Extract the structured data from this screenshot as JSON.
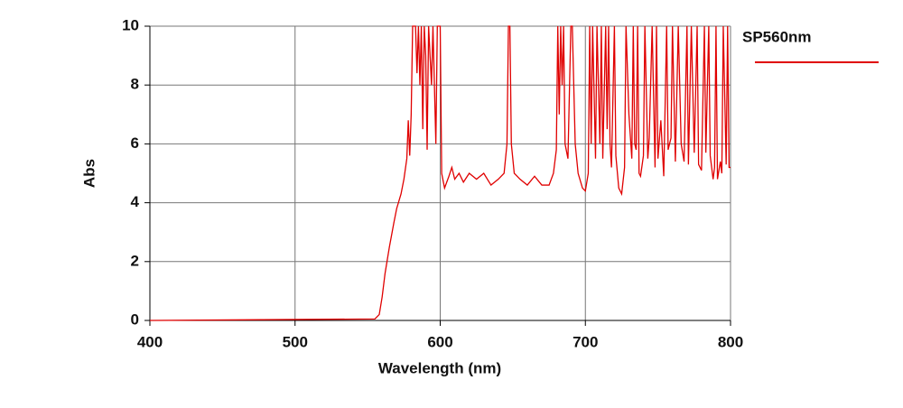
{
  "chart_data": {
    "type": "line",
    "x_label": "Wavelength (nm)",
    "y_label": "Abs",
    "xlim": [
      400,
      800
    ],
    "xticks": [
      400,
      500,
      600,
      700,
      800
    ],
    "ylim": [
      0,
      10
    ],
    "yticks": [
      0,
      2,
      4,
      6,
      8,
      10
    ],
    "grid": true,
    "legend": "top-right",
    "series": [
      {
        "name": "SP560nm",
        "color": "#e00000",
        "x": [
          400,
          555,
          558,
          560,
          562,
          565,
          568,
          570,
          573,
          575,
          577,
          578,
          579,
          580,
          581,
          583,
          584,
          585,
          586,
          587,
          588,
          589,
          590,
          591,
          592,
          594,
          595,
          597,
          598,
          600,
          601,
          603,
          606,
          608,
          610,
          613,
          616,
          620,
          625,
          630,
          635,
          640,
          644,
          646,
          647,
          648,
          649,
          651,
          655,
          660,
          665,
          670,
          675,
          678,
          680,
          681,
          682,
          683,
          684,
          685,
          686,
          688,
          690,
          691,
          693,
          695,
          698,
          700,
          702,
          703,
          704,
          705,
          707,
          708,
          710,
          711,
          712,
          714,
          715,
          716,
          717,
          718,
          720,
          721,
          723,
          725,
          727,
          728,
          730,
          732,
          733,
          734,
          735,
          736,
          737,
          738,
          740,
          741,
          743,
          744,
          746,
          748,
          749,
          750,
          752,
          754,
          756,
          757,
          759,
          760,
          762,
          764,
          766,
          768,
          770,
          771,
          773,
          775,
          777,
          778,
          780,
          782,
          783,
          785,
          786,
          788,
          789,
          790,
          791,
          793,
          794,
          795,
          797,
          798,
          799,
          800
        ],
        "values": [
          0,
          0.05,
          0.2,
          0.8,
          1.6,
          2.5,
          3.3,
          3.8,
          4.3,
          4.8,
          5.5,
          6.8,
          5.6,
          7,
          10,
          10,
          8.4,
          10,
          8,
          10,
          6.5,
          10,
          9,
          5.8,
          10,
          8,
          10,
          6,
          10,
          10,
          5,
          4.5,
          4.9,
          5.2,
          4.8,
          5,
          4.7,
          5,
          4.8,
          5,
          4.6,
          4.8,
          5,
          6,
          10,
          10,
          6,
          5,
          4.8,
          4.6,
          4.9,
          4.6,
          4.6,
          5,
          5.8,
          10,
          7,
          10,
          8,
          10,
          6,
          5.5,
          10,
          10,
          6,
          5,
          4.5,
          4.4,
          5,
          10,
          6,
          10,
          5.5,
          10,
          6,
          10,
          5.5,
          10,
          6.5,
          10,
          6,
          5.2,
          10,
          5.6,
          4.5,
          4.3,
          5.2,
          10,
          7,
          5.5,
          10,
          6,
          5.8,
          10,
          5,
          4.9,
          5.6,
          10,
          5.5,
          6.2,
          10,
          5.2,
          10,
          5.5,
          6.8,
          4.9,
          10,
          5.8,
          6.2,
          10,
          5.4,
          10,
          6,
          5.4,
          10,
          5.3,
          10,
          5.7,
          10,
          5.3,
          5.1,
          10,
          5.7,
          10,
          5.6,
          4.8,
          5.2,
          10,
          4.8,
          5.4,
          5,
          10,
          5.3,
          10,
          5.2,
          5.2
        ]
      }
    ]
  }
}
